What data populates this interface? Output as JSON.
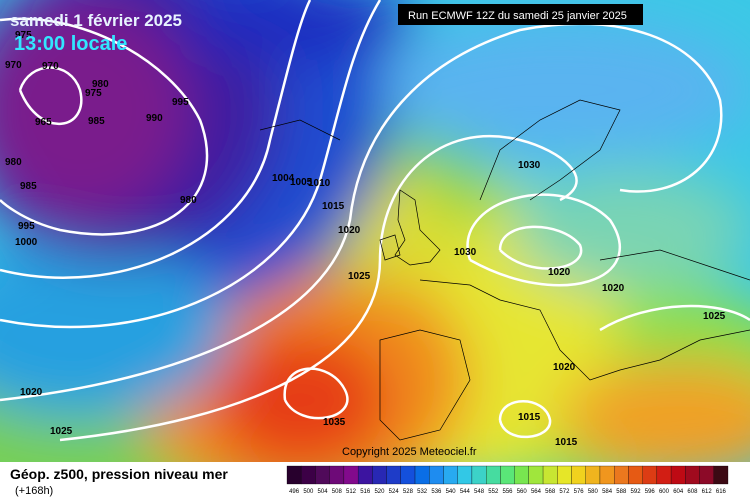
{
  "header": {
    "title": "samedi 1 février 2025",
    "subtitle": "13:00 locale",
    "run": "Run ECMWF 12Z du samedi 25 janvier 2025"
  },
  "copyright": "Copyright 2025 Meteociel.fr",
  "legend": {
    "title": "Géop. z500, pression niveau mer",
    "lead": "(+168h)",
    "scale": [
      "496",
      "500",
      "504",
      "508",
      "512",
      "516",
      "520",
      "524",
      "528",
      "532",
      "536",
      "540",
      "544",
      "548",
      "552",
      "556",
      "560",
      "564",
      "568",
      "572",
      "576",
      "580",
      "584",
      "588",
      "592",
      "596",
      "600",
      "604",
      "608",
      "612",
      "616"
    ]
  },
  "isobar_labels": [
    "975",
    "970",
    "970",
    "980",
    "975",
    "965",
    "985",
    "990",
    "995",
    "980",
    "985",
    "980",
    "995",
    "1000",
    "1004",
    "1005",
    "1010",
    "1015",
    "1020",
    "1025",
    "1030",
    "1030",
    "1020",
    "1020",
    "1025",
    "1020",
    "1020",
    "1025",
    "1035",
    "1015",
    "1015"
  ]
}
